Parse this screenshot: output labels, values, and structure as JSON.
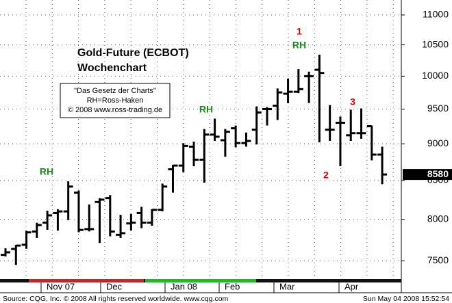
{
  "chart_data": {
    "type": "ohlc",
    "title": "Gold-Future (ECBOT)",
    "subtitle": "Wochenchart",
    "note_lines": [
      "\"Das Gesetz der Charts\"",
      "RH=Ross-Haken",
      "© 2008 www.ross-trading.de"
    ],
    "annotations": [
      "RH",
      "RH",
      "RH",
      "1",
      "2",
      "3"
    ],
    "x_axis_labels": [
      "Nov 07",
      "Dec",
      "Jan 08",
      "Feb",
      "Mar",
      "Apr"
    ],
    "open": [
      7570,
      7640,
      7690,
      7850,
      7960,
      8080,
      8100,
      8340,
      7880,
      8220,
      8270,
      7810,
      7950,
      8080,
      7960,
      8120,
      8650,
      8700,
      8960,
      8780,
      9130,
      9050,
      9220,
      9010,
      9200,
      9500,
      9550,
      9730,
      9760,
      10000,
      10100,
      9200,
      9300,
      9120,
      9150,
      9250,
      8850
    ],
    "high": [
      7640,
      7680,
      7850,
      7950,
      8100,
      8120,
      8480,
      8360,
      8180,
      8260,
      8300,
      8050,
      8060,
      8150,
      8120,
      8450,
      8700,
      9000,
      9020,
      9200,
      9350,
      9200,
      9250,
      9150,
      9530,
      9520,
      9800,
      9950,
      10100,
      10060,
      10330,
      9550,
      9380,
      9480,
      9500,
      9250,
      8950
    ],
    "low": [
      7560,
      7460,
      7650,
      7780,
      7880,
      7870,
      8000,
      7850,
      7860,
      7720,
      7800,
      7780,
      7870,
      7900,
      7930,
      8110,
      8350,
      8620,
      8700,
      8480,
      9050,
      8830,
      8960,
      8970,
      9000,
      9270,
      9350,
      9600,
      9750,
      9600,
      9030,
      9050,
      8700,
      9050,
      9080,
      8780,
      8460
    ],
    "close": [
      7600,
      7680,
      7840,
      7930,
      8050,
      8100,
      8420,
      7870,
      7880,
      8250,
      7850,
      7830,
      7960,
      7960,
      8120,
      8420,
      8700,
      8970,
      8780,
      9130,
      9100,
      9170,
      9010,
      9040,
      9450,
      9500,
      9750,
      9760,
      9800,
      10000,
      10050,
      9200,
      9300,
      9150,
      9150,
      8850,
      8580
    ],
    "color": "#000000",
    "ylim": [
      7290,
      11260
    ],
    "yticks": [
      7500,
      8000,
      8500,
      9000,
      9500,
      10000,
      10500,
      11000
    ],
    "log_scale": true,
    "grid": true,
    "source": "Source: CQG, Inc. © 2008 All rights reserved worldwide. www.cqg.com",
    "timestamp": "Sun May 04 2008 15:52:54"
  }
}
